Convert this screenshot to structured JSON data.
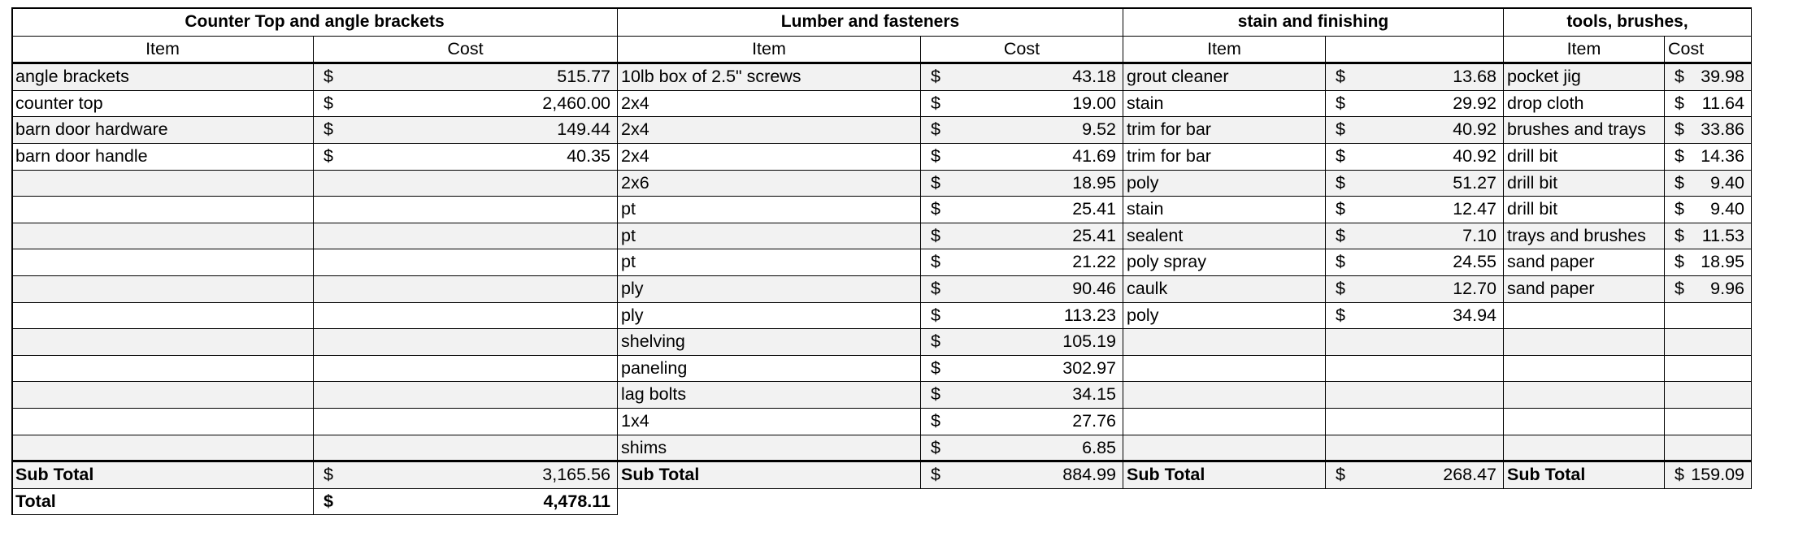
{
  "currency_symbol": "$",
  "sections": [
    {
      "title": "Counter Top and angle brackets",
      "item_header": "Item",
      "cost_header": "Cost",
      "rows": [
        {
          "item": "angle brackets",
          "cost": "515.77"
        },
        {
          "item": "counter top",
          "cost": "2,460.00"
        },
        {
          "item": "barn door hardware",
          "cost": "149.44"
        },
        {
          "item": "barn door handle",
          "cost": "40.35"
        }
      ],
      "subtotal_label": "Sub Total",
      "subtotal": "3,165.56"
    },
    {
      "title": "Lumber and fasteners",
      "item_header": "Item",
      "cost_header": "Cost",
      "rows": [
        {
          "item": "10lb box of 2.5\" screws",
          "cost": "43.18"
        },
        {
          "item": "2x4",
          "cost": "19.00"
        },
        {
          "item": "2x4",
          "cost": "9.52"
        },
        {
          "item": "2x4",
          "cost": "41.69"
        },
        {
          "item": "2x6",
          "cost": "18.95"
        },
        {
          "item": "pt",
          "cost": "25.41"
        },
        {
          "item": "pt",
          "cost": "25.41"
        },
        {
          "item": "pt",
          "cost": "21.22"
        },
        {
          "item": "ply",
          "cost": "90.46"
        },
        {
          "item": "ply",
          "cost": "113.23"
        },
        {
          "item": "shelving",
          "cost": "105.19"
        },
        {
          "item": "paneling",
          "cost": "302.97"
        },
        {
          "item": "lag bolts",
          "cost": "34.15"
        },
        {
          "item": "1x4",
          "cost": "27.76"
        },
        {
          "item": "shims",
          "cost": "6.85"
        }
      ],
      "subtotal_label": "Sub Total",
      "subtotal": "884.99"
    },
    {
      "title": "stain and finishing",
      "item_header": "Item",
      "cost_header": "",
      "rows": [
        {
          "item": "grout cleaner",
          "cost": "13.68"
        },
        {
          "item": "stain",
          "cost": "29.92"
        },
        {
          "item": "trim for bar",
          "cost": "40.92"
        },
        {
          "item": "trim for bar",
          "cost": "40.92"
        },
        {
          "item": "poly",
          "cost": "51.27"
        },
        {
          "item": "stain",
          "cost": "12.47"
        },
        {
          "item": "sealent",
          "cost": "7.10"
        },
        {
          "item": "poly spray",
          "cost": "24.55"
        },
        {
          "item": "caulk",
          "cost": "12.70"
        },
        {
          "item": "poly",
          "cost": "34.94"
        }
      ],
      "subtotal_label": "Sub Total",
      "subtotal": "268.47"
    },
    {
      "title": "tools, brushes,",
      "item_header": "Item",
      "cost_header": "Cost",
      "rows": [
        {
          "item": "pocket jig",
          "cost": "39.98"
        },
        {
          "item": "drop cloth",
          "cost": "11.64"
        },
        {
          "item": "brushes and trays",
          "cost": "33.86"
        },
        {
          "item": "drill bit",
          "cost": "14.36"
        },
        {
          "item": "drill bit",
          "cost": "9.40"
        },
        {
          "item": "drill bit",
          "cost": "9.40"
        },
        {
          "item": "trays and brushes",
          "cost": "11.53"
        },
        {
          "item": "sand paper",
          "cost": "18.95"
        },
        {
          "item": "sand paper",
          "cost": "9.96"
        }
      ],
      "subtotal_label": "Sub Total",
      "subtotal": "159.09"
    }
  ],
  "total_label": "Total",
  "total": "4,478.11"
}
